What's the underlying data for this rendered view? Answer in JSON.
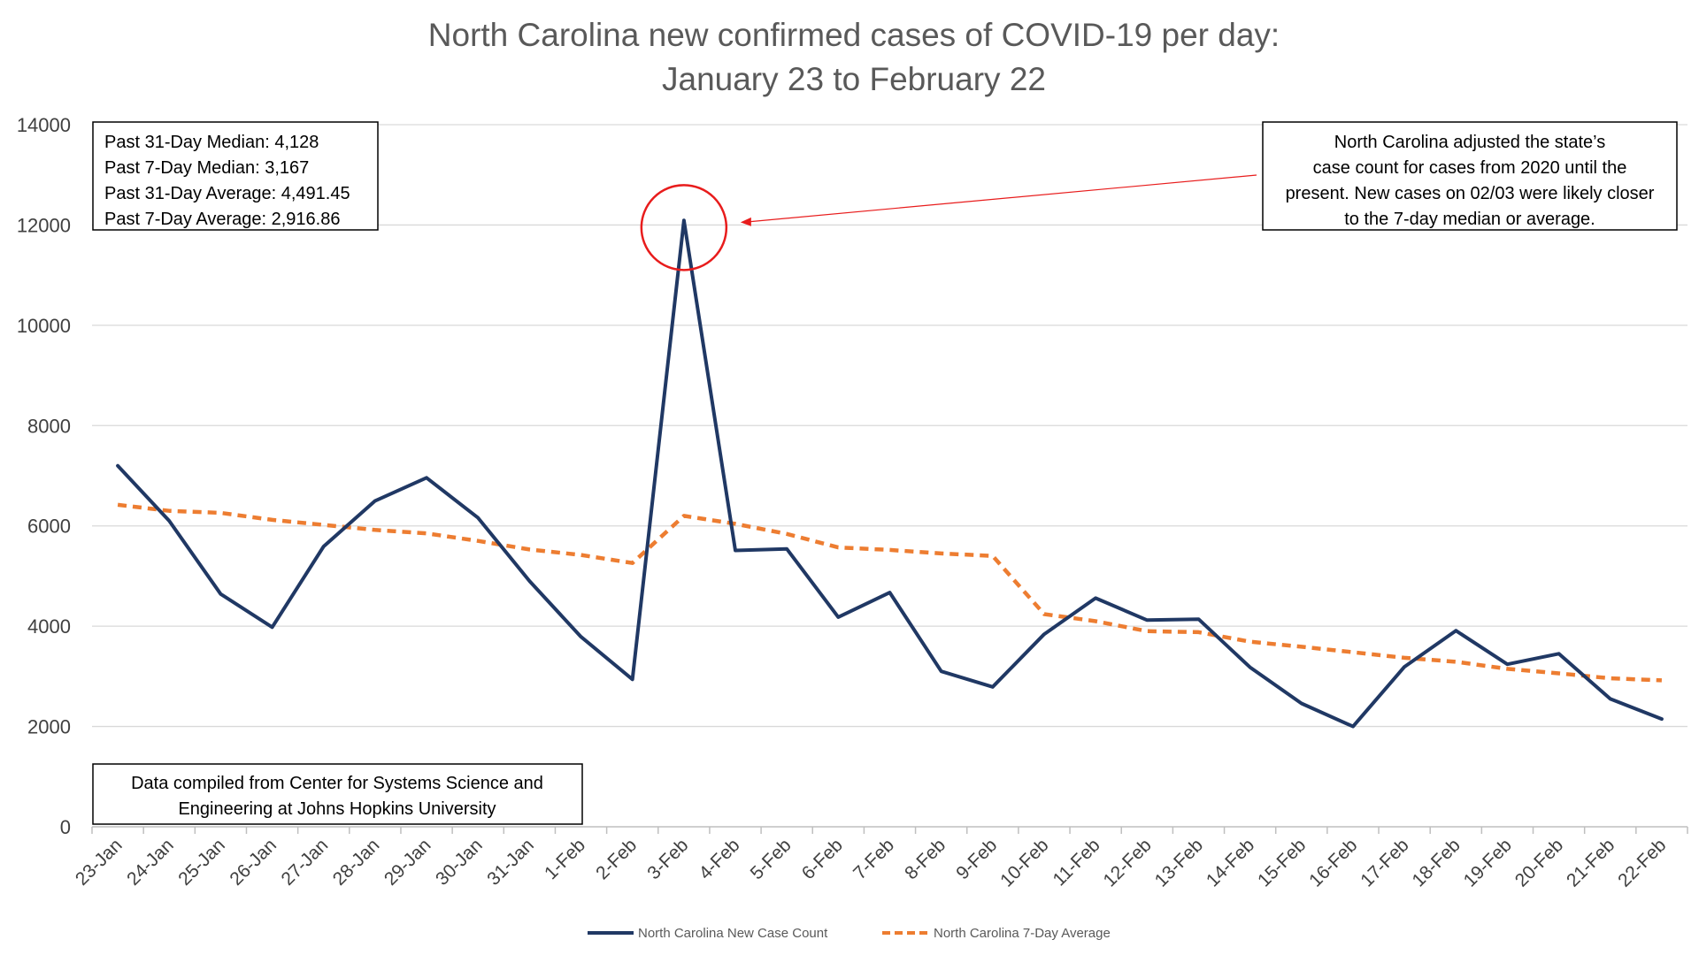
{
  "chart_data": {
    "type": "line",
    "title_line1": "North Carolina new confirmed cases of COVID-19 per day:",
    "title_line2": "January 23 to February 22",
    "xlabel": "",
    "ylabel": "",
    "ylim": [
      0,
      14000
    ],
    "yticks": [
      0,
      2000,
      4000,
      6000,
      8000,
      10000,
      12000,
      14000
    ],
    "grid": true,
    "legend_position": "bottom",
    "categories": [
      "23-Jan",
      "24-Jan",
      "25-Jan",
      "26-Jan",
      "27-Jan",
      "28-Jan",
      "29-Jan",
      "30-Jan",
      "31-Jan",
      "1-Feb",
      "2-Feb",
      "3-Feb",
      "4-Feb",
      "5-Feb",
      "6-Feb",
      "7-Feb",
      "8-Feb",
      "9-Feb",
      "10-Feb",
      "11-Feb",
      "12-Feb",
      "13-Feb",
      "14-Feb",
      "15-Feb",
      "16-Feb",
      "17-Feb",
      "18-Feb",
      "19-Feb",
      "20-Feb",
      "21-Feb",
      "22-Feb"
    ],
    "series": [
      {
        "name": "North Carolina New Case Count",
        "color": "#203864",
        "dash": "solid",
        "values": [
          7200,
          6100,
          4640,
          3980,
          5590,
          6500,
          6960,
          6160,
          4900,
          3790,
          2940,
          12090,
          5510,
          5540,
          4180,
          4670,
          3100,
          2790,
          3840,
          4560,
          4120,
          4140,
          3180,
          2460,
          2000,
          3190,
          3910,
          3240,
          3450,
          2550,
          2150
        ]
      },
      {
        "name": "North Carolina 7-Day Average",
        "color": "#ED7D31",
        "dash": "dashed",
        "values": [
          6420,
          6300,
          6260,
          6120,
          6020,
          5920,
          5850,
          5700,
          5530,
          5420,
          5260,
          6200,
          6040,
          5840,
          5570,
          5520,
          5450,
          5400,
          4240,
          4100,
          3900,
          3880,
          3690,
          3590,
          3480,
          3370,
          3290,
          3150,
          3060,
          2960,
          2920
        ]
      }
    ],
    "annotations": {
      "stats_box": [
        "Past 31-Day Median: 4,128",
        "Past 7-Day Median: 3,167",
        "Past 31-Day Average: 4,491.45",
        "Past 7-Day Average: 2,916.86"
      ],
      "note_box": [
        "North Carolina adjusted the state’s",
        "case count for cases from 2020 until the",
        "present. New cases on 02/03 were likely closer",
        "to the 7-day median or average."
      ],
      "source_box": [
        "Data compiled from Center for Systems Science and",
        "Engineering at Johns Hopkins University"
      ],
      "highlight": {
        "category": "3-Feb",
        "value": 12090,
        "color": "#E81C1C"
      }
    }
  }
}
